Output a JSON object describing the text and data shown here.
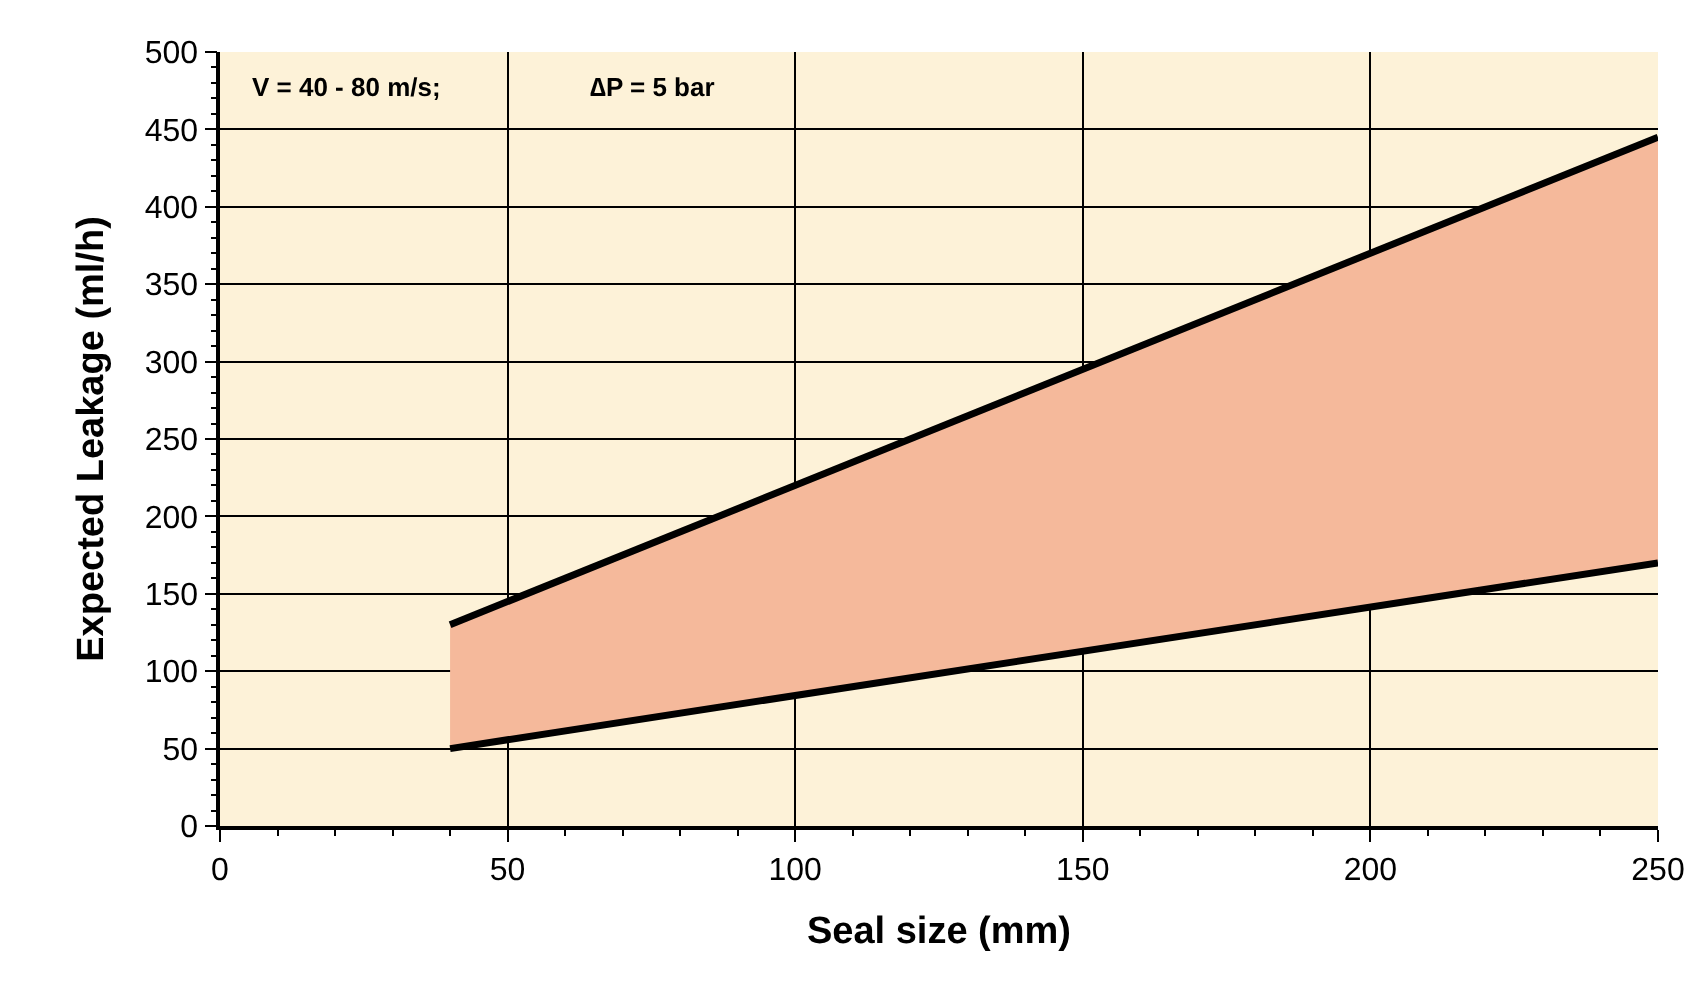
{
  "chart_data": {
    "type": "area",
    "xlabel": "Seal size (mm)",
    "ylabel": "Expected Leakage (ml/h)",
    "x": [
      40,
      250
    ],
    "series": [
      {
        "type": "line",
        "color": "#000000",
        "values": [
          50,
          170
        ]
      },
      {
        "color": "#f5b99b",
        "values": [
          130,
          445
        ]
      }
    ],
    "annotations": [
      "V = 40 - 80 m/s;",
      "∆P = 5 bar"
    ],
    "xlim": [
      0,
      250
    ],
    "xticks": [
      0,
      50,
      100,
      150,
      200,
      250
    ],
    "ylim": [
      0,
      500
    ],
    "yticks": [
      0,
      50,
      100,
      150,
      200,
      250,
      300,
      350,
      400,
      450,
      500
    ],
    "grid": true,
    "line_style": "solid",
    "marker": "none"
  }
}
